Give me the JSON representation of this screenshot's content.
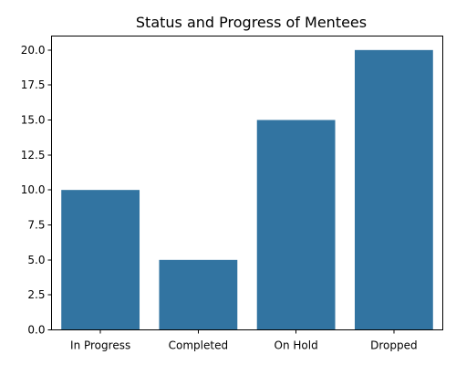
{
  "chart_data": {
    "type": "bar",
    "title": "Status and Progress of Mentees",
    "xlabel": "",
    "ylabel": "",
    "categories": [
      "In Progress",
      "Completed",
      "On Hold",
      "Dropped"
    ],
    "values": [
      10,
      5,
      15,
      20
    ],
    "ylim": [
      0,
      21
    ],
    "yticks": [
      0.0,
      2.5,
      5.0,
      7.5,
      10.0,
      12.5,
      15.0,
      17.5,
      20.0
    ],
    "ytick_labels": [
      "0.0",
      "2.5",
      "5.0",
      "7.5",
      "10.0",
      "12.5",
      "15.0",
      "17.5",
      "20.0"
    ],
    "grid": false,
    "colors": {
      "bar": "#3274a1"
    }
  }
}
